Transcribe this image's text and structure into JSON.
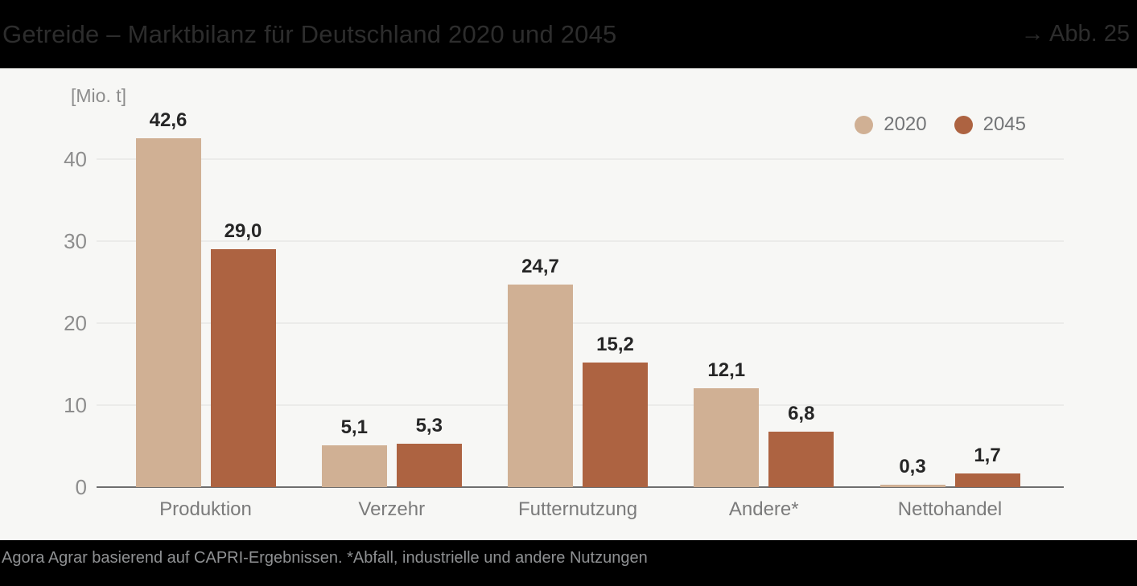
{
  "header": {
    "title": "Getreide – Marktbilanz für Deutschland 2020 und 2045",
    "figure_ref": "→ Abb. 25"
  },
  "footer": {
    "source": "Agora Agrar basierend auf CAPRI-Ergebnissen. *Abfall, industrielle und andere Nutzungen"
  },
  "colors": {
    "series_2020": "#d0b094",
    "series_2045": "#ad6341",
    "header_bg": "#000000",
    "chart_bg": "#f7f7f5",
    "value_label": "#262626",
    "axis_text": "#8d8d8d"
  },
  "chart_data": {
    "type": "bar",
    "title": "Getreide – Marktbilanz für Deutschland 2020 und 2045",
    "unit_label": "[Mio. t]",
    "xlabel": "",
    "ylabel": "[Mio. t]",
    "categories": [
      "Produktion",
      "Verzehr",
      "Futternutzung",
      "Andere*",
      "Nettohandel"
    ],
    "series": [
      {
        "name": "2020",
        "color": "#d0b094",
        "values": [
          42.6,
          5.1,
          24.7,
          12.1,
          0.3
        ],
        "value_labels": [
          "42,6",
          "5,1",
          "24,7",
          "12,1",
          "0,3"
        ]
      },
      {
        "name": "2045",
        "color": "#ad6341",
        "values": [
          29.0,
          5.3,
          15.2,
          6.8,
          1.7
        ],
        "value_labels": [
          "29,0",
          "5,3",
          "15,2",
          "6,8",
          "1,7"
        ]
      }
    ],
    "y_ticks": [
      0,
      10,
      20,
      30,
      40
    ],
    "ylim": [
      0,
      44
    ],
    "grid": true,
    "legend_position": "top-right"
  }
}
